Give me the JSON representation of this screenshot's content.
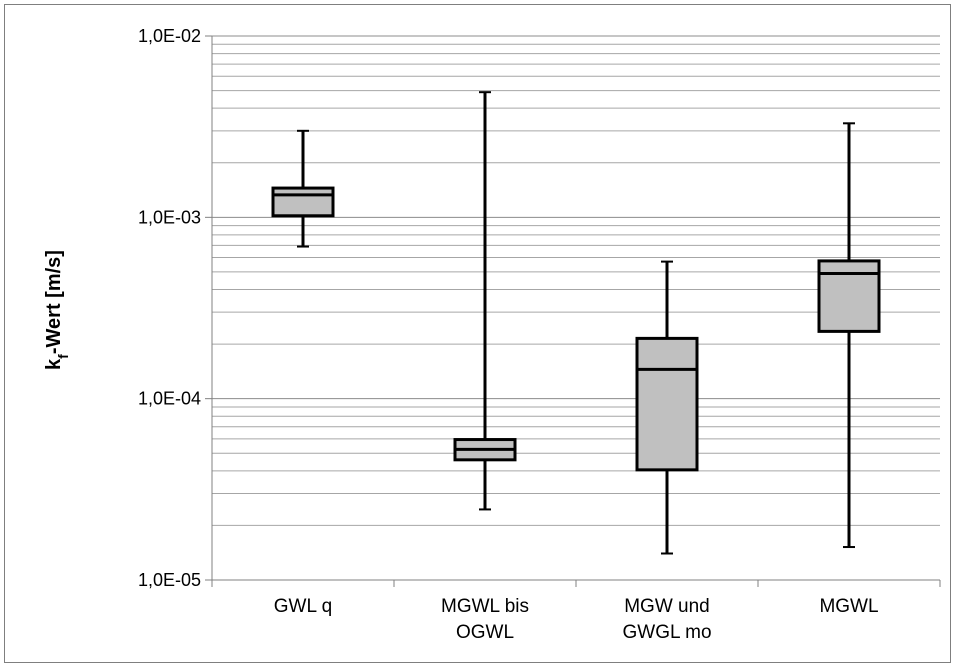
{
  "chart_data": {
    "type": "boxplot",
    "yscale": "log",
    "ylim": [
      1e-05,
      0.01
    ],
    "ylabel": {
      "main": "k",
      "sub": "f",
      "rest": "-Wert [m/s]"
    },
    "y_tick_values": [
      1e-05,
      0.0001,
      0.001,
      0.01
    ],
    "y_tick_labels": [
      "1,0E-05",
      "1,0E-04",
      "1,0E-03",
      "1,0E-02"
    ],
    "grid": "major and minor horizontal",
    "box_fill": "#c0c0c0",
    "line_color": "#000000",
    "grid_color": "#a6a6a6",
    "categories": [
      {
        "label_lines": [
          "GWL q"
        ],
        "min": 0.00069,
        "q1": 0.00102,
        "median": 0.00133,
        "q3": 0.00145,
        "max": 0.003
      },
      {
        "label_lines": [
          "MGWL bis",
          "OGWL"
        ],
        "min": 2.45e-05,
        "q1": 4.6e-05,
        "median": 5.25e-05,
        "q3": 5.95e-05,
        "max": 0.0049
      },
      {
        "label_lines": [
          "MGW und",
          "GWGL mo"
        ],
        "min": 1.4e-05,
        "q1": 4.05e-05,
        "median": 0.000145,
        "q3": 0.000215,
        "max": 0.00057
      },
      {
        "label_lines": [
          "MGWL"
        ],
        "min": 1.52e-05,
        "q1": 0.000235,
        "median": 0.00049,
        "q3": 0.000575,
        "max": 0.0033
      }
    ]
  }
}
